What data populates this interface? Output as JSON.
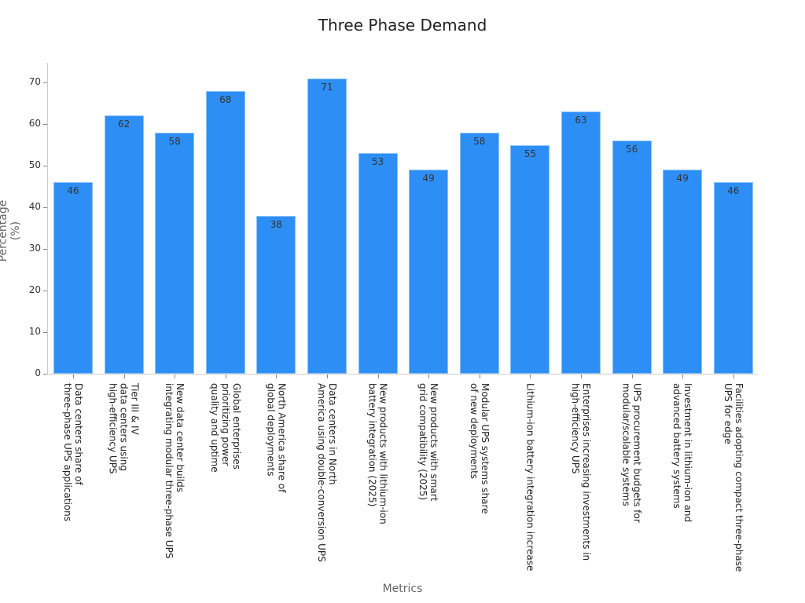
{
  "chart_data": {
    "type": "bar",
    "title": "Three Phase Demand",
    "xlabel": "Metrics",
    "ylabel": "Percentage (%)",
    "ylim": [
      0,
      75
    ],
    "yticks": [
      0,
      10,
      20,
      30,
      40,
      50,
      60,
      70
    ],
    "grid": false,
    "legend": null,
    "bar_color": "#2d8ff5",
    "categories": [
      "Data centers share of\nthree-phase UPS applications",
      "Tier III & IV\ndata centers using\nhigh-efficiency UPS",
      "New data center builds\nintegrating modular three-phase UPS",
      "Global enterprises\nprioritizing power\nquality and uptime",
      "North America share of\nglobal deployments",
      "Data centers in North\nAmerica using double-conversion UPS",
      "New products with lithium-ion\nbattery integration (2025)",
      "New products with smart\ngrid compatibility (2025)",
      "Modular UPS systems share\nof new deployments",
      "Lithium-ion battery integration increase",
      "Enterprises increasing investments in\nhigh-efficiency UPS",
      "UPS procurement budgets for\nmodular/scalable systems",
      "Investment in lithium-ion and\nadvanced battery systems",
      "Facilities adopting compact three-phase\nUPS for edge"
    ],
    "values": [
      46,
      62,
      58,
      68,
      38,
      71,
      53,
      49,
      58,
      55,
      63,
      56,
      49,
      46
    ]
  }
}
